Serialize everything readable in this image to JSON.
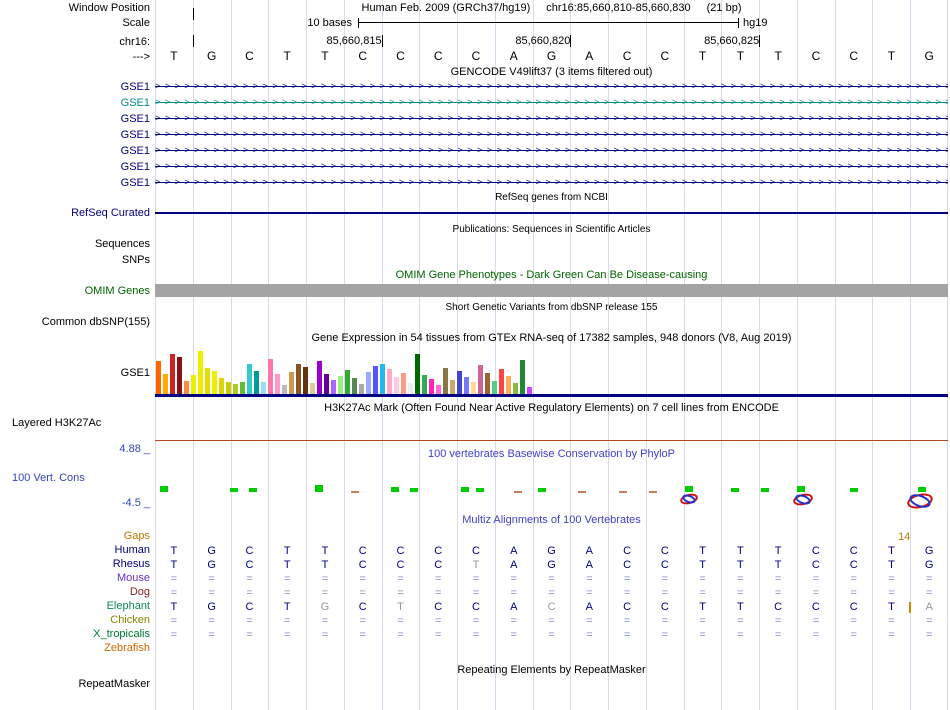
{
  "header": {
    "label": "Window Position",
    "assembly": "Human Feb. 2009 (GRCh37/hg19)",
    "position": "chr16:85,660,810-85,660,830",
    "size": "(21 bp)"
  },
  "scale_row": {
    "label": "Scale",
    "bases_label": "10 bases",
    "assembly": "hg19"
  },
  "ruler": {
    "label": "chr16:",
    "ticks": [
      {
        "text": "85,660,815",
        "col": 6
      },
      {
        "text": "85,660,820",
        "col": 11
      },
      {
        "text": "85,660,825",
        "col": 16
      }
    ],
    "minor_tick_col": 1
  },
  "sequence": {
    "strand_label": "--->",
    "bases": [
      "T",
      "G",
      "C",
      "T",
      "T",
      "C",
      "C",
      "C",
      "C",
      "A",
      "G",
      "A",
      "C",
      "C",
      "T",
      "T",
      "T",
      "C",
      "C",
      "T",
      "G"
    ]
  },
  "gencode": {
    "title": "GENCODE V49lift37 (3 items filtered out)",
    "rows": [
      {
        "label": "GSE1",
        "color": "#000080"
      },
      {
        "label": "GSE1",
        "color": "#008b8b"
      },
      {
        "label": "GSE1",
        "color": "#000080"
      },
      {
        "label": "GSE1",
        "color": "#000080"
      },
      {
        "label": "GSE1",
        "color": "#000080"
      },
      {
        "label": "GSE1",
        "color": "#000080"
      },
      {
        "label": "GSE1",
        "color": "#000080"
      }
    ]
  },
  "refseq": {
    "title": "RefSeq genes from NCBI",
    "label": "RefSeq Curated",
    "color": "#000080"
  },
  "publications": {
    "title": "Publications: Sequences in Scientific Articles",
    "sequences_label": "Sequences",
    "snps_label": "SNPs"
  },
  "omim": {
    "title": "OMIM Gene Phenotypes - Dark Green Can Be Disease-causing",
    "label": "OMIM Genes",
    "color": "#006400",
    "bar_color": "#a4a4a4"
  },
  "dbsnp": {
    "title": "Short Genetic Variants from dbSNP release 155",
    "label": "Common dbSNP(155)"
  },
  "gtex": {
    "title": "Gene Expression in 54 tissues from GTEx RNA-seq of 17382 samples, 948 donors (V8, Aug 2019)",
    "label": "GSE1",
    "baseline_color": "#000080",
    "bars": [
      [
        33,
        "#ff6600"
      ],
      [
        20,
        "#ffaa00"
      ],
      [
        40,
        "#cc2222"
      ],
      [
        37,
        "#881111"
      ],
      [
        13,
        "#ff8844"
      ],
      [
        19,
        "#eeee00"
      ],
      [
        43,
        "#eeee00"
      ],
      [
        26,
        "#e0e000"
      ],
      [
        23,
        "#eeee00"
      ],
      [
        16,
        "#d8d800"
      ],
      [
        12,
        "#cccc00"
      ],
      [
        10,
        "#aacc22"
      ],
      [
        12,
        "#66bb33"
      ],
      [
        30,
        "#33cccc"
      ],
      [
        23,
        "#009999"
      ],
      [
        12,
        "#99ddee"
      ],
      [
        35,
        "#ff77aa"
      ],
      [
        20,
        "#ff99cc"
      ],
      [
        9,
        "#bbbbbb"
      ],
      [
        22,
        "#cc9955"
      ],
      [
        30,
        "#885522"
      ],
      [
        27,
        "#663311"
      ],
      [
        11,
        "#ddcc99"
      ],
      [
        33,
        "#9900cc"
      ],
      [
        20,
        "#660099"
      ],
      [
        14,
        "#aa66ff"
      ],
      [
        18,
        "#99ee88"
      ],
      [
        24,
        "#33aa33"
      ],
      [
        16,
        "#558855"
      ],
      [
        10,
        "#aaaaaa"
      ],
      [
        22,
        "#99aaff"
      ],
      [
        28,
        "#5555ff"
      ],
      [
        30,
        "#22bbee"
      ],
      [
        25,
        "#ffaacc"
      ],
      [
        17,
        "#ffccdd"
      ],
      [
        21,
        "#ff9988"
      ],
      [
        11,
        "#eeeeee"
      ],
      [
        40,
        "#006600"
      ],
      [
        19,
        "#33aa55"
      ],
      [
        15,
        "#ff22bb"
      ],
      [
        9,
        "#ff66cc"
      ],
      [
        26,
        "#887744"
      ],
      [
        14,
        "#ccaa66"
      ],
      [
        23,
        "#4444cc"
      ],
      [
        17,
        "#7777ff"
      ],
      [
        12,
        "#ffdd99"
      ],
      [
        29,
        "#cc6699"
      ],
      [
        21,
        "#996633"
      ],
      [
        13,
        "#55cc88"
      ],
      [
        25,
        "#ff4444"
      ],
      [
        18,
        "#ffaa55"
      ],
      [
        11,
        "#88bb44"
      ],
      [
        34,
        "#228833"
      ],
      [
        7,
        "#cc44ff"
      ]
    ]
  },
  "h3k27ac": {
    "title": "H3K27Ac Mark (Often Found Near Active Regulatory Elements) on 7 cell lines from ENCODE",
    "label": "Layered H3K27Ac",
    "line_color": "#b04818"
  },
  "phylop": {
    "title": "100 vertebrates Basewise Conservation by PhyloP",
    "title_color": "#4040cc",
    "max_label": "4.88 _",
    "track_label": "100 Vert. Cons",
    "min_label": "-4.5 _",
    "greens": [
      {
        "col": 0.25,
        "h": 6
      },
      {
        "col": 2.1,
        "h": 4
      },
      {
        "col": 2.6,
        "h": 4
      },
      {
        "col": 4.35,
        "h": 7
      },
      {
        "col": 6.35,
        "h": 5
      },
      {
        "col": 6.85,
        "h": 4
      },
      {
        "col": 8.2,
        "h": 5
      },
      {
        "col": 8.6,
        "h": 4
      },
      {
        "col": 10.25,
        "h": 4
      },
      {
        "col": 14.15,
        "h": 6
      },
      {
        "col": 15.35,
        "h": 4
      },
      {
        "col": 16.15,
        "h": 4
      },
      {
        "col": 17.1,
        "h": 6
      },
      {
        "col": 18.5,
        "h": 4
      },
      {
        "col": 20.3,
        "h": 5
      }
    ],
    "dashes": [
      5.3,
      9.6,
      11.3,
      12.4,
      13.2
    ],
    "knots": [
      {
        "col": 14.15,
        "w": 18
      },
      {
        "col": 17.15,
        "w": 20
      },
      {
        "col": 20.25,
        "w": 26
      }
    ]
  },
  "multiz": {
    "title": "Multiz Alignments of 100 Vertebrates",
    "title_color": "#4040cc",
    "gap_tick": {
      "row": "Elephant",
      "col": 20,
      "color": "#cc8800"
    },
    "rows": [
      {
        "label": "Gaps",
        "color": "#bb7700",
        "cells": [
          "",
          "",
          "",
          "",
          "",
          "",
          "",
          "",
          "",
          "",
          "",
          "",
          "",
          "",
          "",
          "",
          "",
          "",
          "",
          "14",
          ""
        ]
      },
      {
        "label": "Human",
        "color": "#000080",
        "cells": [
          "T",
          "G",
          "C",
          "T",
          "T",
          "C",
          "C",
          "C",
          "C",
          "A",
          "G",
          "A",
          "C",
          "C",
          "T",
          "T",
          "T",
          "C",
          "C",
          "T",
          "G"
        ]
      },
      {
        "label": "Rhesus",
        "color": "#000080",
        "cells": [
          "T",
          "G",
          "C",
          "T",
          "T",
          "C",
          "C",
          "C",
          {
            "t": "T",
            "muted": true
          },
          "A",
          "G",
          "A",
          "C",
          "C",
          "T",
          "T",
          "T",
          "C",
          "C",
          "T",
          "G"
        ]
      },
      {
        "label": "Mouse",
        "color": "#6633cc",
        "cells": [
          "=",
          "=",
          "=",
          "=",
          "=",
          "=",
          "=",
          "=",
          "=",
          "=",
          "=",
          "=",
          "=",
          "=",
          "=",
          "=",
          "=",
          "=",
          "=",
          "=",
          "="
        ]
      },
      {
        "label": "Dog",
        "color": "#882222",
        "cells": [
          "=",
          "=",
          "=",
          "=",
          "=",
          "=",
          "=",
          "=",
          "=",
          "=",
          "=",
          "=",
          "=",
          "=",
          "=",
          "=",
          "=",
          "=",
          "=",
          "=",
          "="
        ]
      },
      {
        "label": "Elephant",
        "color": "#118855",
        "cells": [
          "T",
          "G",
          "C",
          "T",
          {
            "t": "G",
            "muted": true
          },
          "C",
          {
            "t": "T",
            "muted": true
          },
          "C",
          "C",
          "A",
          {
            "t": "C",
            "muted": true
          },
          "A",
          "C",
          "C",
          "T",
          "T",
          "C",
          "C",
          "C",
          "T",
          {
            "t": "A",
            "muted": true
          }
        ]
      },
      {
        "label": "Chicken",
        "color": "#888800",
        "cells": [
          "=",
          "=",
          "=",
          "=",
          "=",
          "=",
          "=",
          "=",
          "=",
          "=",
          "=",
          "=",
          "=",
          "=",
          "=",
          "=",
          "=",
          "=",
          "=",
          "=",
          "="
        ]
      },
      {
        "label": "X_tropicalis",
        "color": "#007733",
        "cells": [
          "=",
          "=",
          "=",
          "=",
          "=",
          "=",
          "=",
          "=",
          "=",
          "=",
          "=",
          "=",
          "=",
          "=",
          "=",
          "=",
          "=",
          "=",
          "=",
          "=",
          "="
        ]
      },
      {
        "label": "Zebrafish",
        "color": "#cc6600",
        "cells": [
          "",
          "",
          "",
          "",
          "",
          "",
          "",
          "",
          "",
          "",
          "",
          "",
          "",
          "",
          "",
          "",
          "",
          "",
          "",
          "",
          ""
        ]
      }
    ]
  },
  "repeatmasker": {
    "title": "Repeating Elements by RepeatMasker",
    "label": "RepeatMasker"
  }
}
